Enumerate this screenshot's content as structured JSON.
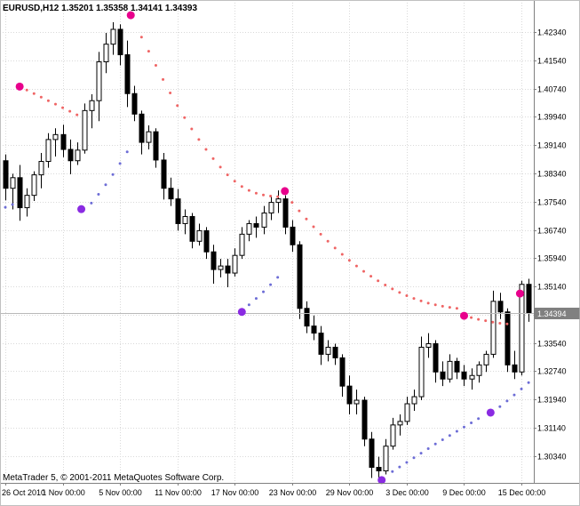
{
  "header": {
    "title_line": "EURUSD,H12  1.35201 1.35358 1.34141 1.34393"
  },
  "footer": {
    "watermark": "MetaTrader 5, © 2001-2011 MetaQuotes Software Corp."
  },
  "colors": {
    "background": "#ffffff",
    "grid": "#d9d9d9",
    "candle_outline": "#000000",
    "bull_body": "#ffffff",
    "bear_body": "#000000",
    "down_trail": "#ef6565",
    "up_trail": "#6d6dd6",
    "sell_signal": "#e8008c",
    "buy_signal": "#8a2be2",
    "price_line": "#b9b9b9",
    "badge_bg": "#808080",
    "badge_text": "#ffffff",
    "axis_line": "#808080",
    "border": "#c0c0c0"
  },
  "chart_data": {
    "type": "candlestick",
    "symbol": "EURUSD",
    "period": "H12",
    "title_line": "EURUSD,H12  1.35201 1.35358 1.34141 1.34393",
    "current_ohlc": {
      "open": "1.35201",
      "high": "1.35358",
      "low": "1.34141",
      "close": "1.34393"
    },
    "current_price": 1.34394,
    "current_price_badge": "1.34394",
    "axis": {
      "price_max": 1.4325,
      "price_min": 1.2958,
      "label_step": 0.008,
      "grid": true,
      "y_labels": [
        "1.42340",
        "1.41540",
        "1.40740",
        "1.39940",
        "1.39140",
        "1.38340",
        "1.37540",
        "1.36740",
        "1.35940",
        "1.35140",
        "1.34340",
        "1.33540",
        "1.32740",
        "1.31940",
        "1.31140",
        "1.30340"
      ],
      "x_ticks": [
        {
          "i": 0,
          "label": "26 Oct 2010"
        },
        {
          "i": 8,
          "label": "1 Nov 00:00"
        },
        {
          "i": 16,
          "label": "5 Nov 00:00"
        },
        {
          "i": 24,
          "label": "11 Nov 00:00"
        },
        {
          "i": 32,
          "label": "17 Nov 00:00"
        },
        {
          "i": 40,
          "label": "23 Nov 00:00"
        },
        {
          "i": 48,
          "label": "29 Nov 00:00"
        },
        {
          "i": 56,
          "label": "3 Dec 00:00"
        },
        {
          "i": 64,
          "label": "9 Dec 00:00"
        },
        {
          "i": 72,
          "label": "15 Dec 00:00"
        }
      ]
    },
    "candles": [
      [
        1.387,
        1.3888,
        1.3758,
        1.3792
      ],
      [
        1.3792,
        1.3833,
        1.3732,
        1.3822
      ],
      [
        1.3822,
        1.3858,
        1.37,
        1.3737
      ],
      [
        1.3737,
        1.3792,
        1.3712,
        1.3772
      ],
      [
        1.3772,
        1.384,
        1.3756,
        1.383
      ],
      [
        1.383,
        1.3892,
        1.3792,
        1.3868
      ],
      [
        1.3868,
        1.3948,
        1.385,
        1.393
      ],
      [
        1.393,
        1.3962,
        1.3882,
        1.3944
      ],
      [
        1.3944,
        1.3972,
        1.388,
        1.3902
      ],
      [
        1.3902,
        1.393,
        1.3832,
        1.387
      ],
      [
        1.387,
        1.3922,
        1.3858,
        1.39
      ],
      [
        1.39,
        1.4032,
        1.389,
        1.4012
      ],
      [
        1.4012,
        1.4058,
        1.3962,
        1.404
      ],
      [
        1.404,
        1.4178,
        1.3982,
        1.415
      ],
      [
        1.415,
        1.4232,
        1.4118,
        1.42
      ],
      [
        1.42,
        1.4262,
        1.417,
        1.4242
      ],
      [
        1.4242,
        1.4256,
        1.414,
        1.417
      ],
      [
        1.417,
        1.421,
        1.4022,
        1.406
      ],
      [
        1.406,
        1.4082,
        1.3982,
        1.4002
      ],
      [
        1.4002,
        1.4012,
        1.3888,
        1.3922
      ],
      [
        1.3922,
        1.397,
        1.3902,
        1.3952
      ],
      [
        1.3952,
        1.3962,
        1.385,
        1.3872
      ],
      [
        1.3872,
        1.3892,
        1.376,
        1.3792
      ],
      [
        1.3792,
        1.3822,
        1.3742,
        1.3762
      ],
      [
        1.3762,
        1.379,
        1.3672,
        1.3692
      ],
      [
        1.3692,
        1.3732,
        1.3662,
        1.3712
      ],
      [
        1.3712,
        1.3722,
        1.3622,
        1.3642
      ],
      [
        1.3642,
        1.3692,
        1.363,
        1.3672
      ],
      [
        1.3672,
        1.3682,
        1.3592,
        1.3612
      ],
      [
        1.3612,
        1.3632,
        1.3522,
        1.3562
      ],
      [
        1.3562,
        1.3592,
        1.354,
        1.3572
      ],
      [
        1.3572,
        1.3592,
        1.3512,
        1.3552
      ],
      [
        1.3552,
        1.3622,
        1.3542,
        1.3602
      ],
      [
        1.3602,
        1.3682,
        1.3592,
        1.3662
      ],
      [
        1.3662,
        1.3702,
        1.3642,
        1.3692
      ],
      [
        1.3692,
        1.3712,
        1.3652,
        1.3682
      ],
      [
        1.3682,
        1.3742,
        1.3662,
        1.3722
      ],
      [
        1.3722,
        1.3772,
        1.3702,
        1.3752
      ],
      [
        1.3752,
        1.3786,
        1.3722,
        1.3762
      ],
      [
        1.3762,
        1.3772,
        1.3662,
        1.3682
      ],
      [
        1.3682,
        1.3702,
        1.3612,
        1.3632
      ],
      [
        1.3632,
        1.3642,
        1.3422,
        1.3452
      ],
      [
        1.3452,
        1.3472,
        1.3382,
        1.3402
      ],
      [
        1.3402,
        1.3432,
        1.3362,
        1.3382
      ],
      [
        1.3382,
        1.3402,
        1.3292,
        1.3322
      ],
      [
        1.3322,
        1.3362,
        1.3302,
        1.3342
      ],
      [
        1.3342,
        1.3352,
        1.3292,
        1.3312
      ],
      [
        1.3312,
        1.3322,
        1.3202,
        1.3232
      ],
      [
        1.3232,
        1.3262,
        1.3152,
        1.3182
      ],
      [
        1.3182,
        1.3222,
        1.3152,
        1.3192
      ],
      [
        1.3192,
        1.3202,
        1.3062,
        1.3082
      ],
      [
        1.3082,
        1.3102,
        1.2972,
        1.3002
      ],
      [
        1.3002,
        1.3032,
        1.2968,
        1.2992
      ],
      [
        1.2992,
        1.3082,
        1.2982,
        1.3062
      ],
      [
        1.3062,
        1.3142,
        1.3052,
        1.3122
      ],
      [
        1.3122,
        1.3152,
        1.3092,
        1.3132
      ],
      [
        1.3132,
        1.3202,
        1.3122,
        1.3182
      ],
      [
        1.3182,
        1.3222,
        1.3162,
        1.3202
      ],
      [
        1.3202,
        1.3372,
        1.3192,
        1.3342
      ],
      [
        1.3342,
        1.3382,
        1.3312,
        1.3352
      ],
      [
        1.3352,
        1.3362,
        1.3242,
        1.3272
      ],
      [
        1.3272,
        1.3302,
        1.3232,
        1.3252
      ],
      [
        1.3252,
        1.3322,
        1.3242,
        1.3302
      ],
      [
        1.3302,
        1.3312,
        1.3252,
        1.3272
      ],
      [
        1.3272,
        1.3292,
        1.3232,
        1.3252
      ],
      [
        1.3252,
        1.3282,
        1.3222,
        1.3262
      ],
      [
        1.3262,
        1.3302,
        1.3242,
        1.3292
      ],
      [
        1.3292,
        1.3332,
        1.3272,
        1.3322
      ],
      [
        1.3322,
        1.3502,
        1.3312,
        1.3472
      ],
      [
        1.3472,
        1.3496,
        1.3422,
        1.3442
      ],
      [
        1.3442,
        1.3452,
        1.3272,
        1.3292
      ],
      [
        1.3292,
        1.3332,
        1.3252,
        1.3272
      ],
      [
        1.3272,
        1.353,
        1.3262,
        1.352
      ],
      [
        1.35201,
        1.35358,
        1.34141,
        1.34393
      ]
    ],
    "indicator": {
      "down_trails": [
        [
          [
            3,
            1.407
          ],
          [
            4,
            1.406
          ],
          [
            5,
            1.405
          ],
          [
            6,
            1.404
          ],
          [
            7,
            1.403
          ],
          [
            8,
            1.402
          ],
          [
            9,
            1.401
          ],
          [
            10,
            1.4
          ]
        ],
        [
          [
            19,
            1.422
          ],
          [
            20,
            1.418
          ],
          [
            21,
            1.414
          ],
          [
            22,
            1.41
          ],
          [
            23,
            1.4062
          ],
          [
            24,
            1.4026
          ],
          [
            25,
            1.3992
          ],
          [
            26,
            1.396
          ],
          [
            27,
            1.393
          ],
          [
            28,
            1.3902
          ],
          [
            29,
            1.3876
          ],
          [
            30,
            1.3852
          ],
          [
            31,
            1.383
          ],
          [
            32,
            1.3812
          ],
          [
            33,
            1.3797
          ],
          [
            34,
            1.3786
          ],
          [
            35,
            1.3778
          ],
          [
            36,
            1.3773
          ],
          [
            37,
            1.377
          ],
          [
            38,
            1.3768
          ]
        ],
        [
          [
            40,
            1.3752
          ],
          [
            41,
            1.3728
          ],
          [
            42,
            1.3705
          ],
          [
            43,
            1.3683
          ],
          [
            44,
            1.3662
          ],
          [
            45,
            1.3642
          ],
          [
            46,
            1.3623
          ],
          [
            47,
            1.3605
          ],
          [
            48,
            1.3588
          ],
          [
            49,
            1.3572
          ],
          [
            50,
            1.3557
          ],
          [
            51,
            1.3543
          ],
          [
            52,
            1.353
          ],
          [
            53,
            1.3518
          ],
          [
            54,
            1.3507
          ],
          [
            55,
            1.3497
          ],
          [
            56,
            1.3488
          ],
          [
            57,
            1.348
          ],
          [
            58,
            1.3473
          ],
          [
            59,
            1.3467
          ],
          [
            60,
            1.3462
          ],
          [
            61,
            1.3458
          ],
          [
            62,
            1.3455
          ],
          [
            63,
            1.3452
          ]
        ],
        [
          [
            65,
            1.3426
          ],
          [
            66,
            1.3421
          ],
          [
            67,
            1.3417
          ],
          [
            68,
            1.3413
          ],
          [
            69,
            1.341
          ],
          [
            70,
            1.3408
          ]
        ]
      ],
      "up_trails": [
        [
          [
            0,
            1.3738
          ],
          [
            1,
            1.3746
          ]
        ],
        [
          [
            12,
            1.375
          ],
          [
            13,
            1.3775
          ],
          [
            14,
            1.3802
          ],
          [
            15,
            1.3831
          ],
          [
            16,
            1.3862
          ],
          [
            17,
            1.3895
          ]
        ],
        [
          [
            34,
            1.3462
          ],
          [
            35,
            1.348
          ],
          [
            36,
            1.3499
          ],
          [
            37,
            1.3519
          ],
          [
            38,
            1.354
          ]
        ],
        [
          [
            54,
            1.299
          ],
          [
            55,
            1.3003
          ],
          [
            56,
            1.3016
          ],
          [
            57,
            1.3029
          ],
          [
            58,
            1.3042
          ],
          [
            59,
            1.3055
          ],
          [
            60,
            1.3068
          ],
          [
            61,
            1.308
          ],
          [
            62,
            1.3092
          ],
          [
            63,
            1.3104
          ],
          [
            64,
            1.3116
          ],
          [
            65,
            1.3128
          ],
          [
            66,
            1.314
          ]
        ],
        [
          [
            69,
            1.3174
          ],
          [
            70,
            1.319
          ],
          [
            71,
            1.3207
          ],
          [
            72,
            1.3224
          ],
          [
            73,
            1.3242
          ]
        ]
      ],
      "sell_dots": [
        [
          2,
          1.408
        ],
        [
          17.5,
          1.4282
        ],
        [
          39,
          1.3784
        ],
        [
          64,
          1.3431
        ],
        [
          71.8,
          1.3494
        ]
      ],
      "buy_dots": [
        [
          10.6,
          1.3733
        ],
        [
          33,
          1.3442
        ],
        [
          52.5,
          1.2966
        ],
        [
          67.7,
          1.3157
        ]
      ]
    }
  }
}
